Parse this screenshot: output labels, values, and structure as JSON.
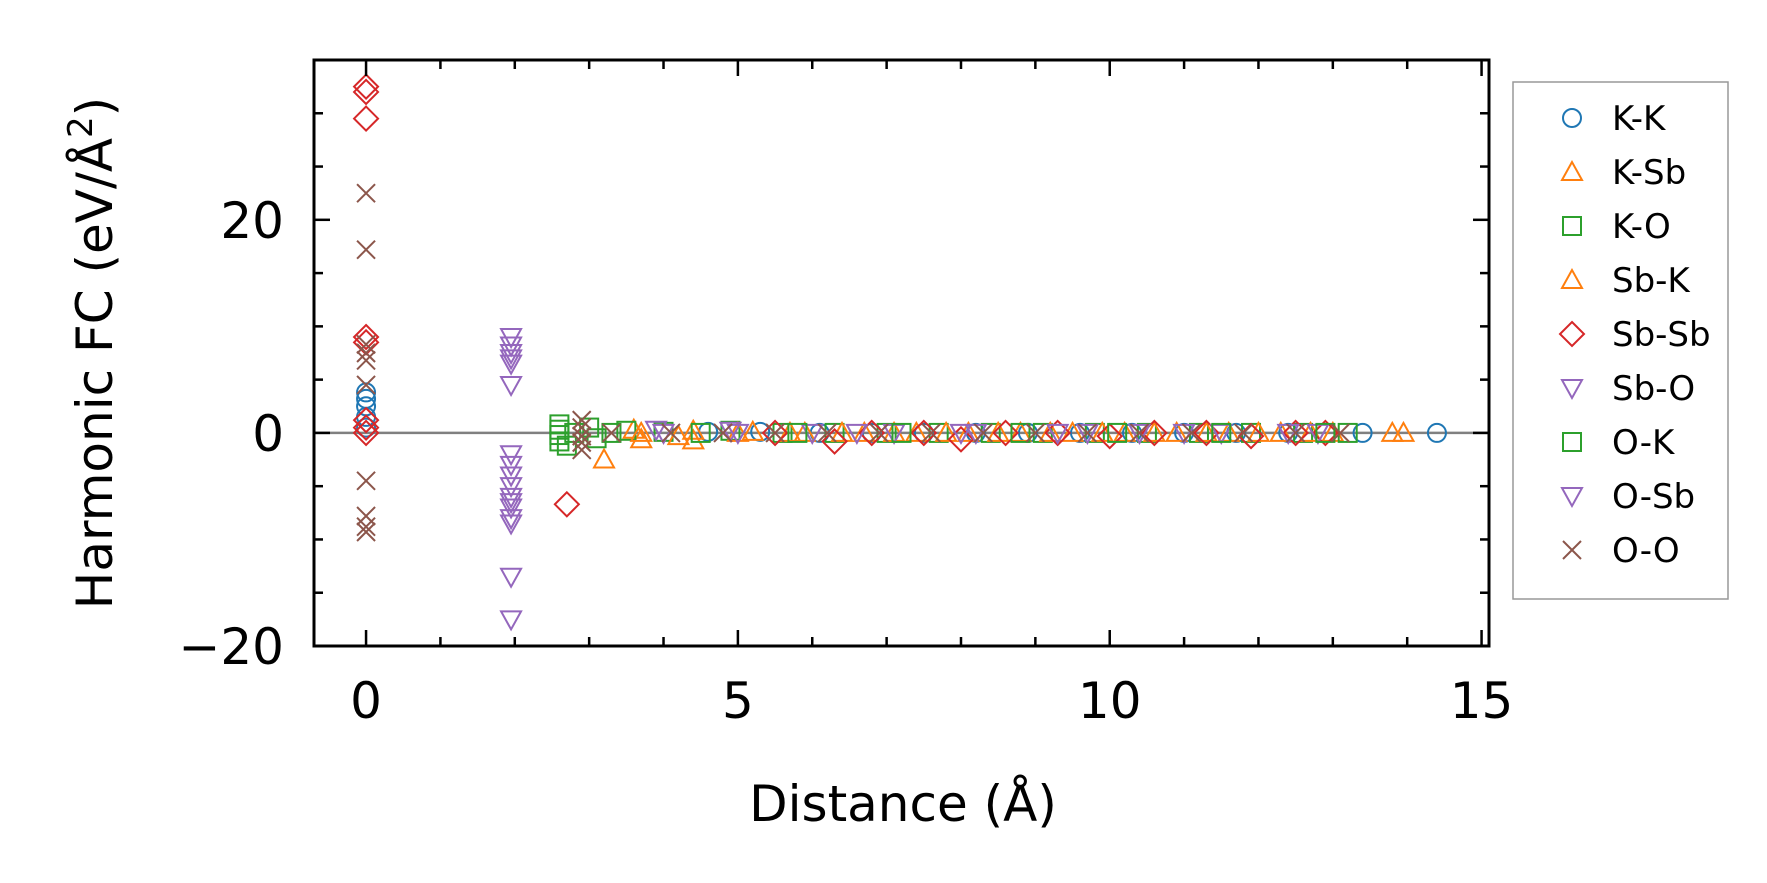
{
  "chart_data": {
    "type": "scatter",
    "title": "",
    "xlabel": "Distance (Å)",
    "ylabel_main": "Harmonic FC (eV/Å",
    "ylabel_sup": "2",
    "ylabel_close": ")",
    "xlim": [
      -0.7,
      15.1
    ],
    "ylim": [
      -20,
      35
    ],
    "xticks": [
      0,
      5,
      10,
      15
    ],
    "yticks": [
      -20,
      0,
      20
    ],
    "xtick_labels": [
      "0",
      "5",
      "10",
      "15"
    ],
    "ytick_labels": [
      "−20",
      "0",
      "20"
    ],
    "reference_line_y": 0,
    "legend_position": "outside-right",
    "series": [
      {
        "name": "K-K",
        "marker": "circle",
        "color": "#1f77b4",
        "points": [
          [
            0,
            0.5
          ],
          [
            0,
            1.5
          ],
          [
            0,
            2.5
          ],
          [
            0,
            3.2
          ],
          [
            0,
            3.8
          ],
          [
            4.6,
            0.1
          ],
          [
            5.3,
            0.1
          ],
          [
            6.1,
            0.0
          ],
          [
            6.8,
            0.0
          ],
          [
            7.5,
            0.0
          ],
          [
            8.2,
            0.0
          ],
          [
            8.9,
            0.0
          ],
          [
            9.6,
            0.0
          ],
          [
            10.3,
            0.0
          ],
          [
            11.0,
            0.0
          ],
          [
            11.7,
            0.0
          ],
          [
            12.4,
            0.0
          ],
          [
            13.4,
            0.0
          ],
          [
            14.4,
            0.0
          ]
        ]
      },
      {
        "name": "K-Sb",
        "marker": "triangle-up",
        "color": "#ff7f0e",
        "points": [
          [
            3.2,
            -2.5
          ],
          [
            3.6,
            0.3
          ],
          [
            3.7,
            -0.6
          ],
          [
            4.4,
            0.2
          ],
          [
            4.4,
            -0.7
          ],
          [
            5.2,
            0.1
          ],
          [
            5.9,
            0.0
          ],
          [
            6.7,
            0.0
          ],
          [
            7.4,
            0.0
          ],
          [
            8.1,
            0.0
          ],
          [
            8.8,
            0.0
          ],
          [
            9.5,
            0.0
          ],
          [
            10.2,
            0.0
          ],
          [
            10.9,
            0.0
          ],
          [
            11.6,
            0.0
          ],
          [
            12.3,
            0.0
          ],
          [
            13.0,
            0.0
          ],
          [
            13.8,
            0.0
          ],
          [
            13.95,
            0.0
          ]
        ]
      },
      {
        "name": "K-O",
        "marker": "square",
        "color": "#2ca02c",
        "points": [
          [
            2.6,
            0.8
          ],
          [
            2.6,
            0.3
          ],
          [
            2.6,
            -0.2
          ],
          [
            2.6,
            -0.8
          ],
          [
            2.7,
            -1.2
          ],
          [
            3.0,
            0.5
          ],
          [
            3.1,
            -0.5
          ],
          [
            3.5,
            0.2
          ],
          [
            4.0,
            0.1
          ],
          [
            4.9,
            0.2
          ],
          [
            5.6,
            0.0
          ],
          [
            6.3,
            0.0
          ],
          [
            7.0,
            0.0
          ],
          [
            7.7,
            0.0
          ],
          [
            8.4,
            0.0
          ],
          [
            9.1,
            0.0
          ],
          [
            9.8,
            0.0
          ],
          [
            10.5,
            0.0
          ],
          [
            11.2,
            0.0
          ],
          [
            11.9,
            0.0
          ],
          [
            12.6,
            0.0
          ],
          [
            13.2,
            0.0
          ]
        ]
      },
      {
        "name": "Sb-K",
        "marker": "triangle-up",
        "color": "#ff7f0e",
        "points": [
          [
            3.7,
            0.0
          ],
          [
            4.2,
            -0.3
          ],
          [
            5.0,
            0.0
          ],
          [
            5.7,
            0.0
          ],
          [
            6.4,
            0.0
          ],
          [
            7.1,
            0.0
          ],
          [
            7.8,
            0.0
          ],
          [
            8.5,
            0.0
          ],
          [
            9.2,
            0.0
          ],
          [
            9.9,
            0.0
          ],
          [
            10.6,
            0.0
          ],
          [
            11.3,
            0.0
          ],
          [
            12.0,
            0.0
          ],
          [
            12.7,
            0.0
          ]
        ]
      },
      {
        "name": "Sb-Sb",
        "marker": "diamond",
        "color": "#d62728",
        "points": [
          [
            0,
            32.5
          ],
          [
            0,
            32.0
          ],
          [
            0,
            29.5
          ],
          [
            0,
            9.0
          ],
          [
            0,
            8.5
          ],
          [
            0,
            1.2
          ],
          [
            0,
            0.5
          ],
          [
            0,
            0.0
          ],
          [
            2.7,
            -6.7
          ],
          [
            5.5,
            0.0
          ],
          [
            6.3,
            -0.8
          ],
          [
            6.8,
            0.0
          ],
          [
            7.5,
            0.0
          ],
          [
            8.0,
            -0.6
          ],
          [
            8.6,
            0.0
          ],
          [
            9.3,
            0.0
          ],
          [
            10.0,
            -0.3
          ],
          [
            10.6,
            0.0
          ],
          [
            11.3,
            0.0
          ],
          [
            11.9,
            -0.3
          ],
          [
            12.5,
            0.0
          ],
          [
            12.9,
            0.0
          ]
        ]
      },
      {
        "name": "Sb-O",
        "marker": "triangle-down",
        "color": "#9467bd",
        "points": [
          [
            1.95,
            9.0
          ],
          [
            1.95,
            8.2
          ],
          [
            1.95,
            7.5
          ],
          [
            1.95,
            7.0
          ],
          [
            1.95,
            4.5
          ],
          [
            1.95,
            -2.0
          ],
          [
            1.95,
            -4.0
          ],
          [
            1.95,
            -6.0
          ],
          [
            1.95,
            -7.0
          ],
          [
            1.95,
            -8.0
          ],
          [
            1.95,
            -13.5
          ],
          [
            1.95,
            -17.5
          ],
          [
            3.9,
            0.3
          ],
          [
            4.9,
            0.2
          ],
          [
            6.0,
            0.0
          ],
          [
            7.1,
            0.0
          ],
          [
            8.2,
            0.0
          ],
          [
            9.3,
            0.0
          ],
          [
            10.4,
            0.0
          ],
          [
            11.5,
            0.0
          ],
          [
            12.8,
            0.0
          ]
        ]
      },
      {
        "name": "O-K",
        "marker": "square",
        "color": "#2ca02c",
        "points": [
          [
            2.8,
            0.0
          ],
          [
            3.3,
            0.0
          ],
          [
            4.5,
            0.0
          ],
          [
            5.8,
            0.0
          ],
          [
            7.2,
            0.0
          ],
          [
            8.8,
            0.0
          ],
          [
            10.1,
            0.0
          ],
          [
            11.5,
            0.0
          ],
          [
            12.9,
            0.0
          ]
        ]
      },
      {
        "name": "O-Sb",
        "marker": "triangle-down",
        "color": "#9467bd",
        "points": [
          [
            1.95,
            6.5
          ],
          [
            1.95,
            -3.0
          ],
          [
            1.95,
            -5.0
          ],
          [
            1.95,
            -6.5
          ],
          [
            1.95,
            -8.5
          ],
          [
            4.0,
            0.0
          ],
          [
            5.0,
            0.0
          ],
          [
            6.6,
            0.0
          ],
          [
            8.0,
            0.0
          ],
          [
            9.7,
            0.0
          ],
          [
            11.0,
            0.0
          ],
          [
            12.4,
            0.0
          ]
        ]
      },
      {
        "name": "O-O",
        "marker": "x",
        "color": "#8c564b",
        "points": [
          [
            0,
            22.5
          ],
          [
            0,
            17.2
          ],
          [
            0,
            8.3
          ],
          [
            0,
            7.5
          ],
          [
            0,
            6.8
          ],
          [
            0,
            4.5
          ],
          [
            0,
            -4.5
          ],
          [
            0,
            -7.8
          ],
          [
            0,
            -8.8
          ],
          [
            0,
            -9.3
          ],
          [
            2.9,
            1.2
          ],
          [
            2.9,
            0.5
          ],
          [
            2.9,
            -0.3
          ],
          [
            2.9,
            -0.9
          ],
          [
            2.9,
            -1.6
          ],
          [
            3.3,
            0.0
          ],
          [
            4.1,
            0.0
          ],
          [
            4.8,
            0.0
          ],
          [
            5.5,
            0.0
          ],
          [
            6.2,
            0.0
          ],
          [
            6.9,
            0.0
          ],
          [
            7.6,
            0.0
          ],
          [
            8.3,
            0.0
          ],
          [
            9.0,
            0.0
          ],
          [
            9.7,
            0.0
          ],
          [
            10.4,
            0.0
          ],
          [
            11.1,
            0.0
          ],
          [
            11.8,
            0.0
          ],
          [
            12.5,
            0.0
          ],
          [
            13.1,
            0.0
          ]
        ]
      }
    ]
  }
}
